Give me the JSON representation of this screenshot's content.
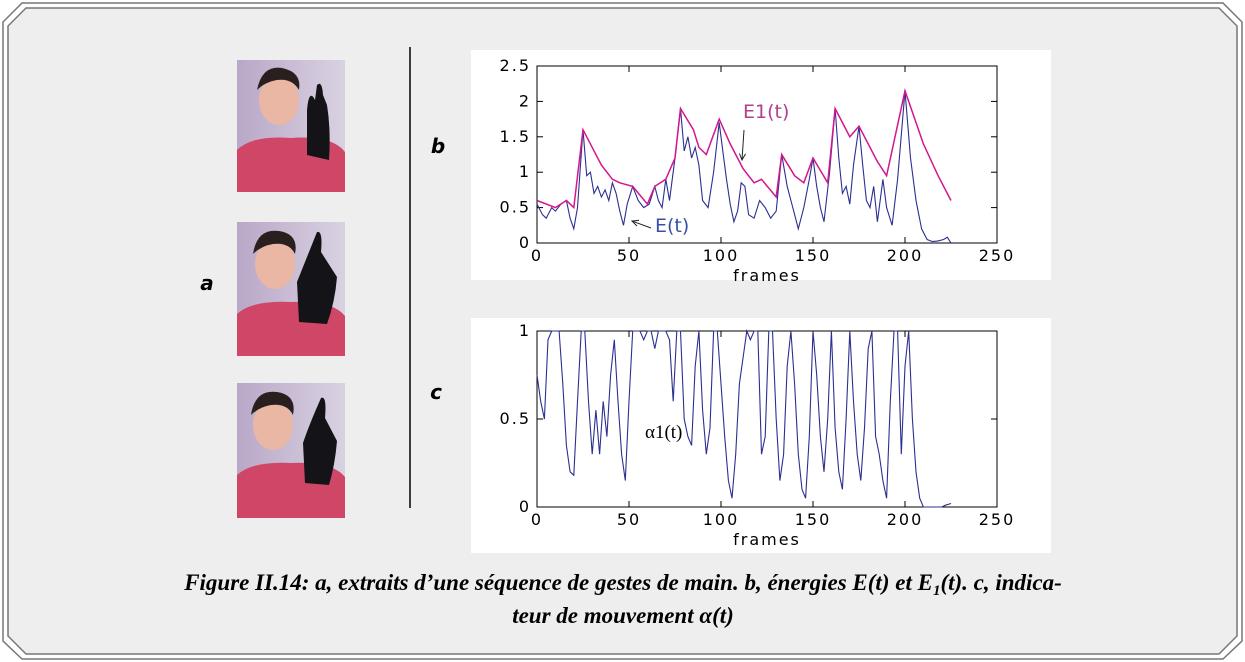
{
  "panel_labels": {
    "a": "a",
    "b": "b",
    "c": "c"
  },
  "chart_data": [
    {
      "type": "line",
      "xlabel": "frames",
      "xlim": [
        0,
        250
      ],
      "xticks": [
        0,
        50,
        100,
        150,
        200,
        250
      ],
      "ylim": [
        0,
        2.5
      ],
      "yticks": [
        0,
        0.5,
        1,
        1.5,
        2,
        2.5
      ],
      "annotations": [
        "E1(t)",
        "E(t)"
      ],
      "series": [
        {
          "color": "#2b2f8f",
          "x": [
            0,
            3,
            5,
            8,
            10,
            13,
            16,
            18,
            20,
            22,
            25,
            27,
            29,
            31,
            33,
            35,
            37,
            39,
            41,
            43,
            45,
            47,
            49,
            52,
            55,
            58,
            61,
            64,
            66,
            68,
            70,
            72,
            75,
            78,
            80,
            82,
            84,
            86,
            88,
            90,
            93,
            96,
            99,
            101,
            103,
            105,
            107,
            109,
            111,
            113,
            115,
            118,
            121,
            124,
            127,
            130,
            133,
            136,
            139,
            142,
            145,
            148,
            150,
            152,
            154,
            156,
            159,
            162,
            164,
            166,
            168,
            170,
            172,
            175,
            177,
            179,
            181,
            183,
            185,
            188,
            190,
            193,
            196,
            200,
            203,
            206,
            209,
            212,
            215,
            218,
            221,
            223,
            225
          ],
          "values": [
            0.55,
            0.4,
            0.35,
            0.5,
            0.45,
            0.55,
            0.6,
            0.35,
            0.2,
            0.5,
            1.6,
            0.95,
            1.0,
            0.7,
            0.8,
            0.65,
            0.75,
            0.6,
            0.85,
            0.7,
            0.45,
            0.25,
            0.55,
            0.8,
            0.6,
            0.5,
            0.55,
            0.8,
            0.6,
            0.5,
            0.9,
            0.6,
            1.2,
            1.9,
            1.3,
            1.5,
            1.2,
            1.35,
            1.1,
            0.6,
            0.5,
            1.0,
            1.7,
            1.3,
            0.9,
            0.55,
            0.3,
            0.45,
            0.85,
            0.8,
            0.4,
            0.35,
            0.6,
            0.5,
            0.35,
            0.45,
            1.25,
            0.8,
            0.5,
            0.2,
            0.5,
            0.9,
            1.2,
            0.8,
            0.5,
            0.3,
            1.0,
            1.9,
            1.2,
            0.7,
            0.8,
            0.55,
            1.1,
            1.65,
            1.1,
            0.6,
            0.5,
            0.8,
            0.3,
            0.9,
            0.5,
            0.25,
            0.9,
            2.15,
            1.2,
            0.6,
            0.2,
            0.05,
            0.02,
            0.03,
            0.05,
            0.08,
            0.0
          ]
        },
        {
          "color": "#d4168c",
          "x": [
            0,
            10,
            16,
            20,
            25,
            35,
            41,
            45,
            52,
            60,
            64,
            70,
            75,
            78,
            85,
            88,
            92,
            99,
            105,
            112,
            118,
            122,
            130,
            133,
            140,
            145,
            150,
            158,
            162,
            170,
            175,
            185,
            190,
            200,
            210,
            218,
            225
          ],
          "values": [
            0.6,
            0.5,
            0.6,
            0.5,
            1.6,
            1.1,
            0.9,
            0.85,
            0.8,
            0.55,
            0.8,
            0.9,
            1.2,
            1.9,
            1.6,
            1.35,
            1.25,
            1.75,
            1.4,
            1.05,
            0.85,
            0.9,
            0.65,
            1.25,
            0.95,
            0.85,
            1.2,
            0.85,
            1.9,
            1.5,
            1.65,
            1.15,
            0.95,
            2.15,
            1.4,
            0.95,
            0.6
          ]
        }
      ]
    },
    {
      "type": "line",
      "xlabel": "frames",
      "xlim": [
        0,
        250
      ],
      "xticks": [
        0,
        50,
        100,
        150,
        200,
        250
      ],
      "ylim": [
        0,
        1
      ],
      "yticks": [
        0,
        0.5,
        1
      ],
      "annotations": [
        "α1(t)"
      ],
      "series": [
        {
          "color": "#2b2f8f",
          "x": [
            0,
            2,
            4,
            6,
            8,
            12,
            14,
            16,
            18,
            20,
            22,
            24,
            26,
            28,
            30,
            32,
            34,
            36,
            38,
            40,
            42,
            44,
            46,
            48,
            50,
            52,
            56,
            58,
            60,
            62,
            64,
            66,
            70,
            72,
            74,
            76,
            78,
            80,
            82,
            84,
            86,
            88,
            90,
            92,
            94,
            96,
            98,
            100,
            102,
            104,
            106,
            108,
            110,
            112,
            114,
            116,
            118,
            120,
            122,
            124,
            126,
            128,
            130,
            132,
            134,
            136,
            138,
            140,
            142,
            144,
            146,
            148,
            150,
            152,
            154,
            156,
            158,
            160,
            162,
            164,
            166,
            168,
            170,
            172,
            174,
            176,
            178,
            180,
            182,
            184,
            186,
            188,
            190,
            192,
            194,
            196,
            198,
            200,
            202,
            204,
            206,
            208,
            210,
            212,
            216,
            220,
            222,
            225
          ],
          "values": [
            0.75,
            0.6,
            0.5,
            0.95,
            1,
            1,
            0.7,
            0.35,
            0.2,
            0.18,
            0.6,
            1,
            1,
            0.6,
            0.3,
            0.55,
            0.3,
            0.6,
            0.4,
            0.75,
            0.95,
            0.6,
            0.3,
            0.15,
            0.6,
            1,
            1,
            0.95,
            1,
            1,
            0.9,
            1,
            1,
            0.95,
            0.6,
            1,
            1,
            0.5,
            0.4,
            0.35,
            0.8,
            1,
            0.55,
            0.3,
            0.45,
            1,
            1,
            0.7,
            0.4,
            0.15,
            0.05,
            0.3,
            0.7,
            0.85,
            1,
            0.95,
            1,
            1,
            0.3,
            0.4,
            1,
            1,
            0.5,
            0.15,
            0.3,
            0.8,
            1,
            0.7,
            0.3,
            0.1,
            0.05,
            0.4,
            1,
            0.75,
            0.4,
            0.2,
            0.5,
            1,
            0.45,
            0.2,
            0.1,
            0.5,
            1,
            0.6,
            0.3,
            0.15,
            0.45,
            0.9,
            1,
            0.4,
            0.3,
            0.15,
            0.05,
            0.6,
            1,
            1,
            0.3,
            0.8,
            1,
            0.5,
            0.2,
            0.05,
            0,
            0,
            0,
            0,
            0.01,
            0.02
          ]
        }
      ]
    }
  ],
  "caption": {
    "line1": "Figure II.14: a, extraits d’une séquence de gestes de main. b, énergies E(t) et E",
    "sub": "1",
    "line1_end": "(t). c, indica-",
    "line2": "teur de mouvement α(t)"
  }
}
